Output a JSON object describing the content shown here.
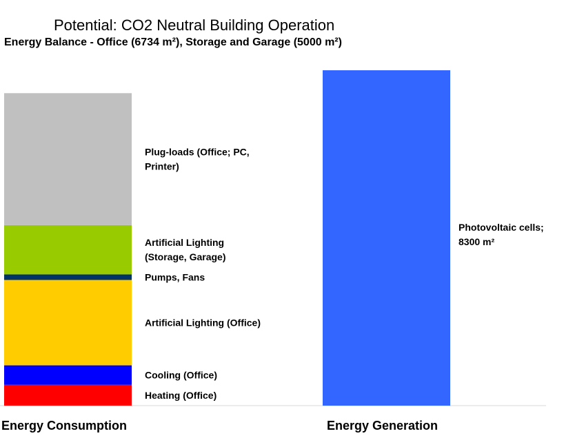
{
  "chart_data": {
    "type": "bar",
    "title": "Potential: CO2 Neutral Building Operation",
    "subtitle": "Energy Balance - Office (6734 m²), Storage and Garage (5000 m²)",
    "categories": [
      "Energy Consumption",
      "Energy Generation"
    ],
    "ylim": [
      0,
      485
    ],
    "grid": false,
    "series": [
      {
        "label_lines": [
          "Heating (Office)"
        ],
        "category": "Energy Consumption",
        "value": 30,
        "color": "#ff0000"
      },
      {
        "label_lines": [
          "Cooling (Office)"
        ],
        "category": "Energy Consumption",
        "value": 28,
        "color": "#0000ff"
      },
      {
        "label_lines": [
          "Artificial Lighting (Office)"
        ],
        "category": "Energy Consumption",
        "value": 123,
        "color": "#ffcc00"
      },
      {
        "label_lines": [
          "Pumps, Fans"
        ],
        "category": "Energy Consumption",
        "value": 8,
        "color": "#003366"
      },
      {
        "label_lines": [
          "Artificial Lighting",
          "(Storage, Garage)"
        ],
        "category": "Energy Consumption",
        "value": 71,
        "color": "#99cc00"
      },
      {
        "label_lines": [
          "Plug-loads (Office; PC,",
          "Printer)"
        ],
        "category": "Energy Consumption",
        "value": 190,
        "color": "#c0c0c0"
      },
      {
        "label_lines": [
          "Photovoltaic cells;",
          "8300 m²"
        ],
        "category": "Energy Generation",
        "value": 483,
        "color": "#3366ff"
      }
    ]
  }
}
